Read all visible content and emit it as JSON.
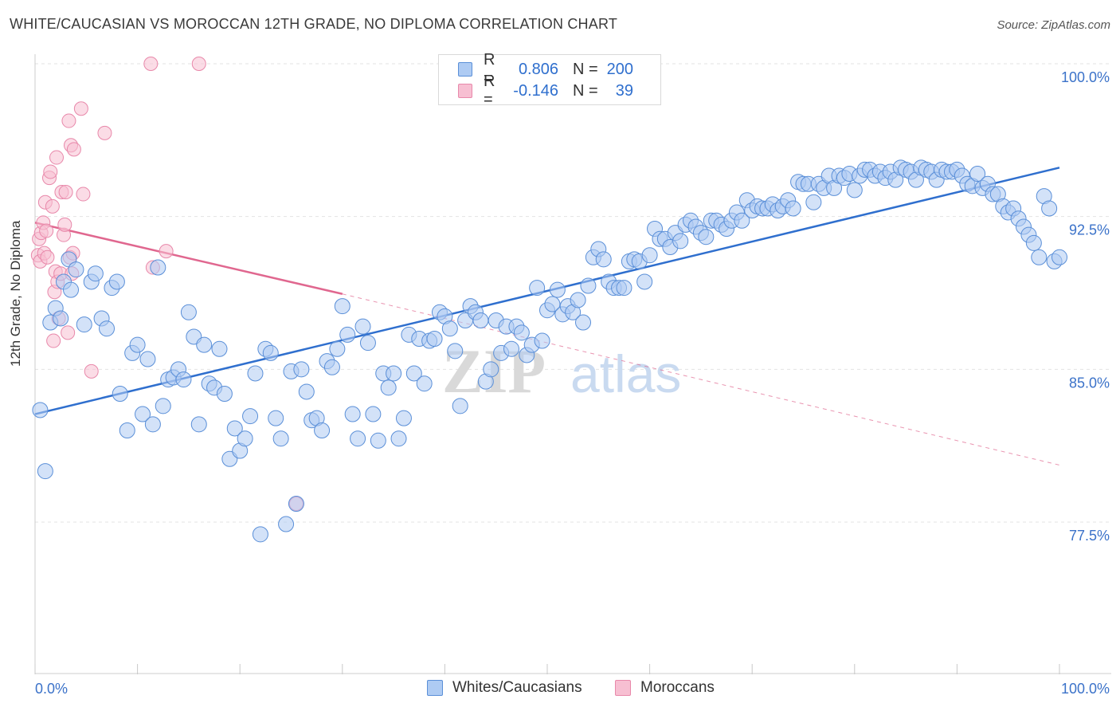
{
  "title": "WHITE/CAUCASIAN VS MOROCCAN 12TH GRADE, NO DIPLOMA CORRELATION CHART",
  "source": "Source: ZipAtlas.com",
  "watermark": {
    "zip": "ZIP",
    "atlas": "atlas"
  },
  "legend": {
    "rows": [
      {
        "r_label": "R =",
        "r_value": "0.806",
        "n_label": "N =",
        "n_value": "200",
        "color": "#aecbf3",
        "stroke": "#5a8fd8"
      },
      {
        "r_label": "R =",
        "r_value": "-0.146",
        "n_label": "N =",
        "n_value": "39",
        "color": "#f7bfd2",
        "stroke": "#e888aa"
      }
    ]
  },
  "bottom_legend": {
    "whites": "Whites/Caucasians",
    "moroccans": "Moroccans"
  },
  "chart_data": {
    "type": "scatter",
    "title": "WHITE/CAUCASIAN VS MOROCCAN 12TH GRADE, NO DIPLOMA CORRELATION CHART",
    "xlabel": "",
    "ylabel": "12th Grade, No Diploma",
    "xlim": [
      0,
      100
    ],
    "ylim": [
      70.5,
      101
    ],
    "x_tick_labels": [
      "0.0%",
      "100.0%"
    ],
    "y_ticks": [
      77.5,
      85.0,
      92.5,
      100.0
    ],
    "y_tick_labels": [
      "77.5%",
      "85.0%",
      "92.5%",
      "100.0%"
    ],
    "grid": true,
    "legend_position": "top-center",
    "colors": {
      "whites": "#2f6fce",
      "whites_fill": "#aecbf3",
      "moroccans": "#e0678f",
      "moroccans_fill": "#f7bfd2"
    },
    "series": [
      {
        "name": "Whites/Caucasians",
        "trendline": {
          "x": [
            0,
            100
          ],
          "y": [
            82.8,
            94.9
          ]
        },
        "points": [
          [
            0.5,
            83.0
          ],
          [
            1.0,
            80.0
          ],
          [
            1.5,
            87.3
          ],
          [
            2.0,
            88.0
          ],
          [
            2.5,
            87.5
          ],
          [
            2.8,
            89.3
          ],
          [
            3.3,
            90.4
          ],
          [
            3.5,
            88.9
          ],
          [
            4.0,
            89.9
          ],
          [
            4.8,
            87.2
          ],
          [
            5.5,
            89.3
          ],
          [
            5.9,
            89.7
          ],
          [
            6.5,
            87.5
          ],
          [
            7.0,
            87.0
          ],
          [
            7.5,
            89.0
          ],
          [
            8.0,
            89.3
          ],
          [
            8.3,
            83.8
          ],
          [
            9.0,
            82.0
          ],
          [
            9.5,
            85.8
          ],
          [
            10.0,
            86.2
          ],
          [
            10.5,
            82.8
          ],
          [
            11.0,
            85.5
          ],
          [
            11.5,
            82.3
          ],
          [
            12.0,
            90.0
          ],
          [
            12.5,
            83.2
          ],
          [
            13.0,
            84.5
          ],
          [
            13.5,
            84.6
          ],
          [
            14.0,
            85.0
          ],
          [
            14.5,
            84.5
          ],
          [
            15.0,
            87.8
          ],
          [
            15.5,
            86.6
          ],
          [
            16.0,
            82.3
          ],
          [
            16.5,
            86.2
          ],
          [
            17.0,
            84.3
          ],
          [
            17.5,
            84.1
          ],
          [
            18.0,
            86.0
          ],
          [
            18.5,
            83.8
          ],
          [
            19.0,
            80.6
          ],
          [
            19.5,
            82.1
          ],
          [
            20.0,
            81.0
          ],
          [
            20.5,
            81.6
          ],
          [
            21.0,
            82.7
          ],
          [
            21.5,
            84.8
          ],
          [
            22.0,
            76.9
          ],
          [
            22.5,
            86.0
          ],
          [
            23.0,
            85.8
          ],
          [
            23.5,
            82.6
          ],
          [
            24.0,
            81.6
          ],
          [
            24.5,
            77.4
          ],
          [
            25.0,
            84.9
          ],
          [
            25.5,
            78.4
          ],
          [
            26.0,
            85.0
          ],
          [
            26.5,
            83.9
          ],
          [
            27.0,
            82.5
          ],
          [
            27.5,
            82.6
          ],
          [
            28.0,
            82.0
          ],
          [
            28.5,
            85.4
          ],
          [
            29.0,
            85.1
          ],
          [
            29.5,
            86.0
          ],
          [
            30.0,
            88.1
          ],
          [
            30.5,
            86.7
          ],
          [
            31.0,
            82.8
          ],
          [
            31.5,
            81.6
          ],
          [
            32.0,
            87.1
          ],
          [
            32.5,
            86.3
          ],
          [
            33.0,
            82.8
          ],
          [
            33.5,
            81.5
          ],
          [
            34.0,
            84.8
          ],
          [
            34.5,
            84.1
          ],
          [
            35.0,
            84.8
          ],
          [
            35.5,
            81.6
          ],
          [
            36.0,
            82.6
          ],
          [
            36.5,
            86.7
          ],
          [
            37.0,
            84.8
          ],
          [
            37.5,
            86.5
          ],
          [
            38.0,
            84.3
          ],
          [
            38.5,
            86.4
          ],
          [
            39.0,
            86.5
          ],
          [
            39.5,
            87.8
          ],
          [
            40.0,
            87.6
          ],
          [
            40.5,
            87.0
          ],
          [
            41.0,
            85.9
          ],
          [
            41.5,
            83.2
          ],
          [
            42.0,
            87.4
          ],
          [
            42.5,
            88.1
          ],
          [
            43.0,
            87.8
          ],
          [
            43.5,
            87.4
          ],
          [
            44.0,
            84.4
          ],
          [
            44.5,
            85.0
          ],
          [
            45.0,
            87.4
          ],
          [
            45.5,
            85.8
          ],
          [
            46.0,
            87.1
          ],
          [
            46.5,
            86.0
          ],
          [
            47.0,
            87.1
          ],
          [
            47.5,
            86.8
          ],
          [
            48.0,
            85.7
          ],
          [
            48.5,
            86.2
          ],
          [
            49.0,
            89.0
          ],
          [
            49.5,
            86.4
          ],
          [
            50.0,
            87.9
          ],
          [
            50.5,
            88.2
          ],
          [
            51.0,
            88.9
          ],
          [
            51.5,
            87.7
          ],
          [
            52.0,
            88.1
          ],
          [
            52.5,
            87.8
          ],
          [
            53.0,
            88.4
          ],
          [
            53.5,
            87.3
          ],
          [
            54.0,
            89.1
          ],
          [
            54.5,
            90.5
          ],
          [
            55.0,
            90.9
          ],
          [
            55.5,
            90.4
          ],
          [
            56.0,
            89.3
          ],
          [
            56.5,
            89.0
          ],
          [
            57.0,
            89.0
          ],
          [
            57.5,
            89.0
          ],
          [
            58.0,
            90.3
          ],
          [
            58.5,
            90.4
          ],
          [
            59.0,
            90.3
          ],
          [
            59.5,
            89.3
          ],
          [
            60.0,
            90.6
          ],
          [
            60.5,
            91.9
          ],
          [
            61.0,
            91.4
          ],
          [
            61.5,
            91.4
          ],
          [
            62.0,
            91.0
          ],
          [
            62.5,
            91.7
          ],
          [
            63.0,
            91.3
          ],
          [
            63.5,
            92.1
          ],
          [
            64.0,
            92.3
          ],
          [
            64.5,
            92.0
          ],
          [
            65.0,
            91.7
          ],
          [
            65.5,
            91.5
          ],
          [
            66.0,
            92.3
          ],
          [
            66.5,
            92.3
          ],
          [
            67.0,
            92.1
          ],
          [
            67.5,
            91.9
          ],
          [
            68.0,
            92.3
          ],
          [
            68.5,
            92.7
          ],
          [
            69.0,
            92.3
          ],
          [
            69.5,
            93.3
          ],
          [
            70.0,
            92.8
          ],
          [
            70.5,
            93.0
          ],
          [
            71.0,
            92.9
          ],
          [
            71.5,
            92.9
          ],
          [
            72.0,
            93.1
          ],
          [
            72.5,
            92.8
          ],
          [
            73.0,
            93.0
          ],
          [
            73.5,
            93.3
          ],
          [
            74.0,
            92.9
          ],
          [
            74.5,
            94.2
          ],
          [
            75.0,
            94.1
          ],
          [
            75.5,
            94.1
          ],
          [
            76.0,
            93.2
          ],
          [
            76.5,
            94.1
          ],
          [
            77.0,
            93.9
          ],
          [
            77.5,
            94.5
          ],
          [
            78.0,
            93.9
          ],
          [
            78.5,
            94.5
          ],
          [
            79.0,
            94.4
          ],
          [
            79.5,
            94.6
          ],
          [
            80.0,
            93.8
          ],
          [
            80.5,
            94.5
          ],
          [
            81.0,
            94.8
          ],
          [
            81.5,
            94.8
          ],
          [
            82.0,
            94.5
          ],
          [
            82.5,
            94.7
          ],
          [
            83.0,
            94.4
          ],
          [
            83.5,
            94.7
          ],
          [
            84.0,
            94.3
          ],
          [
            84.5,
            94.9
          ],
          [
            85.0,
            94.8
          ],
          [
            85.5,
            94.7
          ],
          [
            86.0,
            94.3
          ],
          [
            86.5,
            94.9
          ],
          [
            87.0,
            94.8
          ],
          [
            87.5,
            94.7
          ],
          [
            88.0,
            94.3
          ],
          [
            88.5,
            94.8
          ],
          [
            89.0,
            94.7
          ],
          [
            89.5,
            94.7
          ],
          [
            90.0,
            94.8
          ],
          [
            90.5,
            94.5
          ],
          [
            91.0,
            94.1
          ],
          [
            91.5,
            94.0
          ],
          [
            92.0,
            94.6
          ],
          [
            92.5,
            93.9
          ],
          [
            93.0,
            94.1
          ],
          [
            93.5,
            93.6
          ],
          [
            94.0,
            93.6
          ],
          [
            94.5,
            93.0
          ],
          [
            95.0,
            92.7
          ],
          [
            95.5,
            92.9
          ],
          [
            96.0,
            92.4
          ],
          [
            96.5,
            92.0
          ],
          [
            97.0,
            91.6
          ],
          [
            97.5,
            91.2
          ],
          [
            98.0,
            90.5
          ],
          [
            98.5,
            93.5
          ],
          [
            99.0,
            92.9
          ],
          [
            99.5,
            90.3
          ],
          [
            100.0,
            90.5
          ]
        ]
      },
      {
        "name": "Moroccans",
        "trendline": {
          "x": [
            0,
            30
          ],
          "y": [
            92.2,
            88.7
          ],
          "dashed_extension": {
            "x": [
              30,
              100
            ],
            "y": [
              88.7,
              80.3
            ]
          }
        },
        "points": [
          [
            0.3,
            90.6
          ],
          [
            0.4,
            91.4
          ],
          [
            0.5,
            90.3
          ],
          [
            0.6,
            91.7
          ],
          [
            0.8,
            92.2
          ],
          [
            0.9,
            90.7
          ],
          [
            1.0,
            93.2
          ],
          [
            1.1,
            91.8
          ],
          [
            1.2,
            90.5
          ],
          [
            1.4,
            94.4
          ],
          [
            1.5,
            94.7
          ],
          [
            1.7,
            93.0
          ],
          [
            1.8,
            86.4
          ],
          [
            1.9,
            88.8
          ],
          [
            2.0,
            89.8
          ],
          [
            2.1,
            95.4
          ],
          [
            2.2,
            89.3
          ],
          [
            2.3,
            87.5
          ],
          [
            2.5,
            89.7
          ],
          [
            2.6,
            93.7
          ],
          [
            2.8,
            91.6
          ],
          [
            2.9,
            92.1
          ],
          [
            3.0,
            93.7
          ],
          [
            3.2,
            86.8
          ],
          [
            3.3,
            97.2
          ],
          [
            3.4,
            90.5
          ],
          [
            3.5,
            96.0
          ],
          [
            3.6,
            89.7
          ],
          [
            3.7,
            90.7
          ],
          [
            3.8,
            95.8
          ],
          [
            4.5,
            97.8
          ],
          [
            4.7,
            93.6
          ],
          [
            5.5,
            84.9
          ],
          [
            6.8,
            96.6
          ],
          [
            11.3,
            100.0
          ],
          [
            11.5,
            90.0
          ],
          [
            12.8,
            90.8
          ],
          [
            16.0,
            100.0
          ],
          [
            25.5,
            78.4
          ]
        ]
      }
    ]
  }
}
